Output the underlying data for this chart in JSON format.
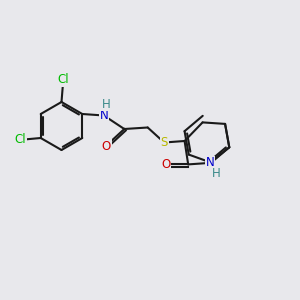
{
  "background_color": "#e8e8ec",
  "bond_color": "#1a1a1a",
  "bond_width": 1.5,
  "font_size": 8.5,
  "atom_colors": {
    "N": "#0000cc",
    "O": "#cc0000",
    "S": "#b8b800",
    "Cl": "#00bb00",
    "H": "#3a8a8a"
  },
  "figsize": [
    3.0,
    3.0
  ],
  "dpi": 100,
  "xlim": [
    0,
    10
  ],
  "ylim": [
    0,
    10
  ]
}
